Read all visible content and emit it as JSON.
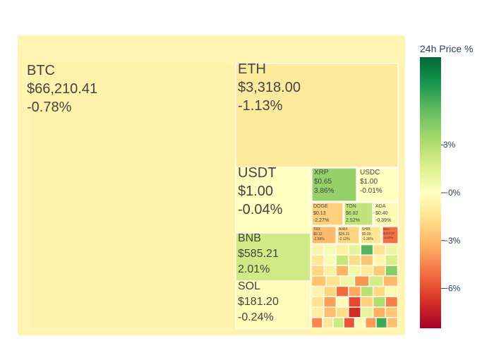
{
  "chart_data": {
    "type": "treemap",
    "colorbar": {
      "title": "24h Price %",
      "colorscale": [
        "#a50026",
        "#d73027",
        "#f46d43",
        "#fdae61",
        "#fee08b",
        "#ffffbf",
        "#d9ef8b",
        "#a6d96a",
        "#66bd63",
        "#1a9850",
        "#006837"
      ],
      "range": [
        -8.5,
        8.5
      ],
      "ticks": [
        {
          "value": 3,
          "label": "3%"
        },
        {
          "value": 0,
          "label": "−0%"
        },
        {
          "value": -3,
          "label": "−3%"
        },
        {
          "value": -6,
          "label": "−6%"
        }
      ]
    },
    "labeled_tiles": [
      {
        "symbol": "BTC",
        "price": "$66,210.41",
        "change": "-0.78%",
        "pct": -0.78
      },
      {
        "symbol": "ETH",
        "price": "$3,318.00",
        "change": "-1.13%",
        "pct": -1.13
      },
      {
        "symbol": "USDT",
        "price": "$1.00",
        "change": "-0.04%",
        "pct": -0.04
      },
      {
        "symbol": "BNB",
        "price": "$585.21",
        "change": "2.01%",
        "pct": 2.01
      },
      {
        "symbol": "SOL",
        "price": "$181.20",
        "change": "-0.24%",
        "pct": -0.24
      },
      {
        "symbol": "XRP",
        "price": "$0.65",
        "change": "3.86%",
        "pct": 3.86
      },
      {
        "symbol": "USDC",
        "price": "$1.00",
        "change": "-0.01%",
        "pct": -0.01
      },
      {
        "symbol": "DOGE",
        "price": "$0.13",
        "change": "-2.27%",
        "pct": -2.27
      },
      {
        "symbol": "TON",
        "price": "$6.82",
        "change": "2.52%",
        "pct": 2.52
      },
      {
        "symbol": "ADA",
        "price": "$0.40",
        "change": "-0.39%",
        "pct": -0.39
      },
      {
        "symbol": "TRX",
        "price": "$0.12",
        "change": "-2.99%",
        "pct": -2.99
      },
      {
        "symbol": "AVAX",
        "price": "$26.21",
        "change": "-2.12%",
        "pct": -2.12
      },
      {
        "symbol": "SHIB",
        "price": "$0.00",
        "change": "-1.36%",
        "pct": -1.36
      },
      {
        "symbol": "BCH",
        "price": "$423.07",
        "change": "-5.03%",
        "pct": -5.03
      }
    ],
    "small_tiles_pct": [
      -0.6,
      0.4,
      -0.9,
      1.2,
      5.5,
      -1.6,
      0.9,
      -1.3,
      0.3,
      2.4,
      -1.8,
      -2.6,
      -0.5,
      1.7,
      -2.0,
      -0.8,
      -3.2,
      0.6,
      -1.1,
      -2.4,
      4.2,
      -2.7,
      -1.5,
      0.8,
      -4.1,
      1.9,
      -3.0,
      -0.7,
      -2.1,
      -5.2,
      -3.5,
      2.8,
      -1.9,
      -0.4,
      -1.4,
      -3.8,
      0.2,
      -6.1,
      -2.2,
      3.1,
      -4.6,
      -0.9,
      -2.9,
      -1.7,
      -7.0,
      1.1,
      -3.3,
      -2.5,
      -4.4,
      -1.2,
      2.2,
      -5.8,
      -0.3,
      -3.9,
      6.0,
      -2.8
    ]
  }
}
